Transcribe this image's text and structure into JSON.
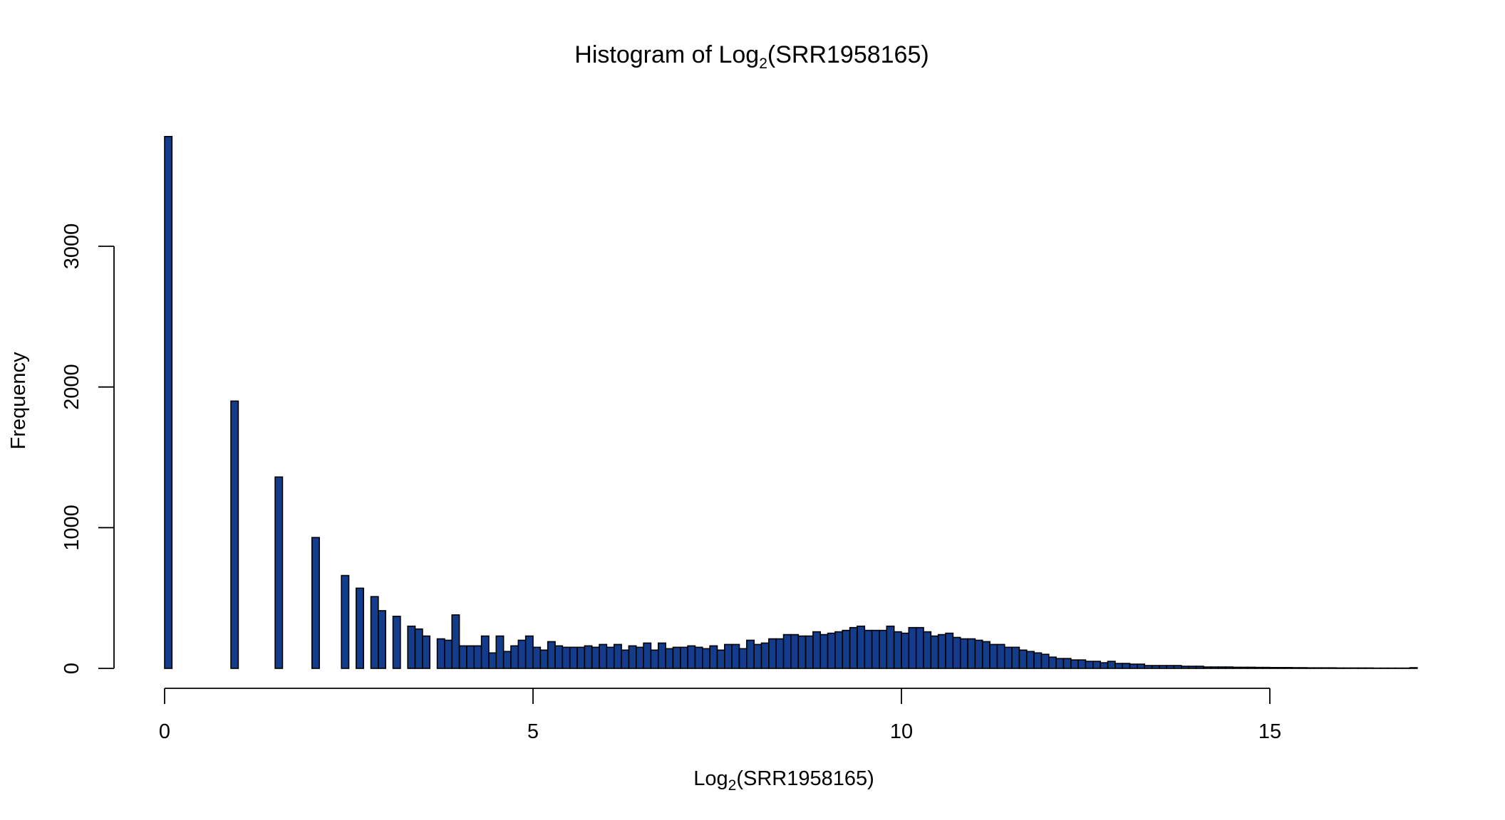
{
  "chart_data": {
    "type": "bar",
    "title": {
      "prefix": "Histogram of Log",
      "subscript": "2",
      "suffix": "(SRR1958165)"
    },
    "xlabel": {
      "prefix": "Log",
      "subscript": "2",
      "suffix": "(SRR1958165)"
    },
    "ylabel": "Frequency",
    "xlim": [
      0,
      17
    ],
    "ylim": [
      0,
      3780
    ],
    "x_ticks": [
      0,
      5,
      10,
      15
    ],
    "x_tick_labels": [
      "0",
      "5",
      "10",
      "15"
    ],
    "y_ticks": [
      0,
      1000,
      2000,
      3000
    ],
    "y_tick_labels": [
      "0",
      "1000",
      "2000",
      "3000"
    ],
    "grid": false,
    "legend": "none",
    "bin_width": 0.1,
    "bar_color": "#143c8c",
    "bar_edge_color": "#000000",
    "bins_start": [
      0.0,
      0.1,
      0.2,
      0.3,
      0.4,
      0.5,
      0.6,
      0.7,
      0.8,
      0.9,
      1.0,
      1.1,
      1.2,
      1.3,
      1.4,
      1.5,
      1.6,
      1.7,
      1.8,
      1.9,
      2.0,
      2.1,
      2.2,
      2.3,
      2.4,
      2.5,
      2.6,
      2.7,
      2.8,
      2.9,
      3.0,
      3.1,
      3.2,
      3.3,
      3.4,
      3.5,
      3.6,
      3.7,
      3.8,
      3.9,
      4.0,
      4.1,
      4.2,
      4.3,
      4.4,
      4.5,
      4.6,
      4.7,
      4.8,
      4.9,
      5.0,
      5.1,
      5.2,
      5.3,
      5.4,
      5.5,
      5.6,
      5.7,
      5.8,
      5.9,
      6.0,
      6.1,
      6.2,
      6.3,
      6.4,
      6.5,
      6.6,
      6.7,
      6.8,
      6.9,
      7.0,
      7.1,
      7.2,
      7.3,
      7.4,
      7.5,
      7.6,
      7.7,
      7.8,
      7.9,
      8.0,
      8.1,
      8.2,
      8.3,
      8.4,
      8.5,
      8.6,
      8.7,
      8.8,
      8.9,
      9.0,
      9.1,
      9.2,
      9.3,
      9.4,
      9.5,
      9.6,
      9.7,
      9.8,
      9.9,
      10.0,
      10.1,
      10.2,
      10.3,
      10.4,
      10.5,
      10.6,
      10.7,
      10.8,
      10.9,
      11.0,
      11.1,
      11.2,
      11.3,
      11.4,
      11.5,
      11.6,
      11.7,
      11.8,
      11.9,
      12.0,
      12.1,
      12.2,
      12.3,
      12.4,
      12.5,
      12.6,
      12.7,
      12.8,
      12.9,
      13.0,
      13.1,
      13.2,
      13.3,
      13.4,
      13.5,
      13.6,
      13.7,
      13.8,
      13.9,
      14.0,
      14.1,
      14.2,
      14.3,
      14.4,
      14.5,
      14.6,
      14.7,
      14.8,
      14.9,
      15.0,
      15.1,
      15.2,
      15.3,
      15.4,
      15.5,
      15.6,
      15.7,
      15.8,
      15.9,
      16.0,
      16.1,
      16.2,
      16.3,
      16.4,
      16.5,
      16.6,
      16.7,
      16.8,
      16.9
    ],
    "values": [
      3780,
      0,
      0,
      0,
      0,
      0,
      0,
      0,
      0,
      1900,
      0,
      0,
      0,
      0,
      0,
      1360,
      0,
      0,
      0,
      0,
      930,
      0,
      0,
      0,
      660,
      0,
      570,
      0,
      510,
      410,
      0,
      370,
      0,
      300,
      280,
      230,
      0,
      210,
      200,
      380,
      160,
      160,
      160,
      230,
      110,
      230,
      120,
      160,
      200,
      230,
      150,
      130,
      190,
      160,
      150,
      150,
      150,
      160,
      150,
      170,
      150,
      170,
      130,
      160,
      150,
      180,
      130,
      180,
      140,
      150,
      150,
      160,
      150,
      140,
      160,
      130,
      170,
      170,
      140,
      200,
      170,
      180,
      210,
      210,
      240,
      240,
      230,
      230,
      260,
      240,
      250,
      260,
      270,
      290,
      300,
      270,
      270,
      270,
      300,
      260,
      250,
      290,
      290,
      260,
      230,
      240,
      250,
      220,
      210,
      210,
      200,
      190,
      170,
      170,
      150,
      150,
      130,
      120,
      110,
      100,
      80,
      70,
      70,
      60,
      60,
      50,
      50,
      40,
      50,
      35,
      35,
      30,
      30,
      20,
      20,
      20,
      20,
      20,
      15,
      15,
      15,
      10,
      10,
      10,
      10,
      8,
      8,
      8,
      7,
      7,
      6,
      6,
      6,
      5,
      5,
      4,
      4,
      4,
      4,
      3,
      3,
      3,
      3,
      3,
      2,
      2,
      2,
      2,
      2,
      5
    ]
  }
}
